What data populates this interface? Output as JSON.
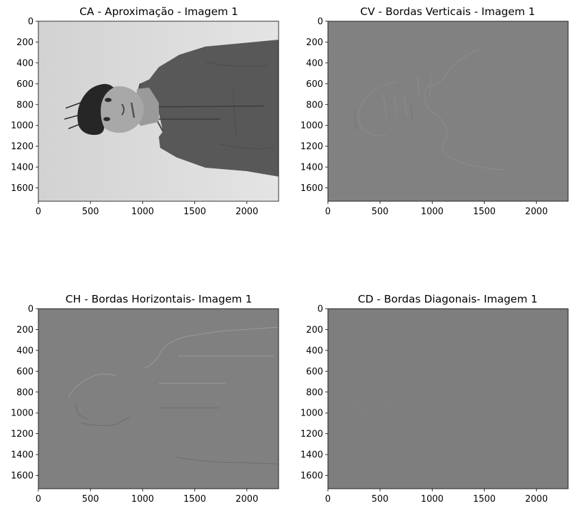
{
  "figure": {
    "ca_image_description_hidden": null
  },
  "chart_data": [
    {
      "type": "heatmap",
      "title": "CA - Aproximação - Imagem 1",
      "colormap": "gray",
      "xlim": [
        0,
        2304
      ],
      "ylim": [
        1728,
        0
      ],
      "x_ticks": [
        0,
        500,
        1000,
        1500,
        2000
      ],
      "y_ticks": [
        0,
        200,
        400,
        600,
        800,
        1000,
        1200,
        1400,
        1600
      ],
      "content": "approximation"
    },
    {
      "type": "heatmap",
      "title": "CV - Bordas Verticais - Imagem 1",
      "colormap": "gray",
      "xlim": [
        0,
        2304
      ],
      "ylim": [
        1728,
        0
      ],
      "x_ticks": [
        0,
        500,
        1000,
        1500,
        2000
      ],
      "y_ticks": [
        0,
        200,
        400,
        600,
        800,
        1000,
        1200,
        1400,
        1600
      ],
      "content": "vertical"
    },
    {
      "type": "heatmap",
      "title": "CH - Bordas Horizontais- Imagem 1",
      "colormap": "gray",
      "xlim": [
        0,
        2304
      ],
      "ylim": [
        1728,
        0
      ],
      "x_ticks": [
        0,
        500,
        1000,
        1500,
        2000
      ],
      "y_ticks": [
        0,
        200,
        400,
        600,
        800,
        1000,
        1200,
        1400,
        1600
      ],
      "content": "horizontal"
    },
    {
      "type": "heatmap",
      "title": "CD - Bordas Diagonais- Imagem 1",
      "colormap": "gray",
      "xlim": [
        0,
        2304
      ],
      "ylim": [
        1728,
        0
      ],
      "x_ticks": [
        0,
        500,
        1000,
        1500,
        2000
      ],
      "y_ticks": [
        0,
        200,
        400,
        600,
        800,
        1000,
        1200,
        1400,
        1600
      ],
      "content": "diagonal"
    }
  ]
}
